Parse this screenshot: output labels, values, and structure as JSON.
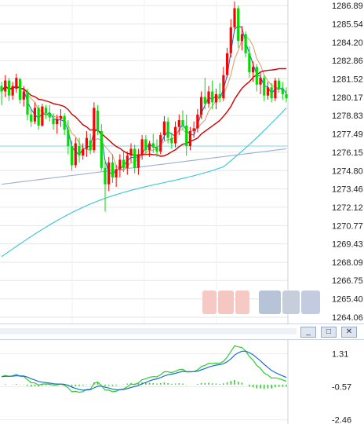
{
  "chart_data": [
    {
      "type": "candlestick",
      "title": "",
      "y_axis_side": "right",
      "ylim": [
        1263.6,
        1287.3
      ],
      "y_ticks": [
        "1286.89",
        "1285.54",
        "1284.20",
        "1282.86",
        "1281.52",
        "1280.17",
        "1278.83",
        "1277.49",
        "1276.15",
        "1274.80",
        "1273.46",
        "1272.12",
        "1270.77",
        "1269.43",
        "1268.09",
        "1266.75",
        "1265.40",
        "1264.06"
      ],
      "grid": true,
      "up_color": "#ff0000",
      "down_color": "#00dd00",
      "ma_colors": [
        "#1a6fd0",
        "#d9a276",
        "#cc0000",
        "#33c6d6",
        "#9aaed0"
      ],
      "horizontal_line": {
        "value": 1276.6,
        "color": "#7fd9e6"
      },
      "candles": [
        [
          1281.0,
          1281.3,
          1279.6,
          1280.6
        ],
        [
          1280.6,
          1281.8,
          1280.2,
          1281.4
        ],
        [
          1281.4,
          1281.6,
          1279.9,
          1280.3
        ],
        [
          1280.3,
          1281.3,
          1280.0,
          1281.0
        ],
        [
          1280.8,
          1281.9,
          1280.5,
          1281.6
        ],
        [
          1281.5,
          1281.6,
          1279.7,
          1280.0
        ],
        [
          1280.0,
          1281.0,
          1279.5,
          1280.6
        ],
        [
          1280.6,
          1280.8,
          1278.5,
          1278.9
        ],
        [
          1278.9,
          1279.4,
          1278.0,
          1278.4
        ],
        [
          1278.4,
          1279.8,
          1278.2,
          1279.4
        ],
        [
          1279.4,
          1279.6,
          1277.8,
          1278.1
        ],
        [
          1278.1,
          1279.7,
          1278.0,
          1279.5
        ],
        [
          1279.4,
          1279.6,
          1278.6,
          1279.0
        ],
        [
          1279.0,
          1279.6,
          1278.4,
          1278.7
        ],
        [
          1278.6,
          1279.0,
          1277.8,
          1278.2
        ],
        [
          1278.2,
          1278.9,
          1277.5,
          1278.6
        ],
        [
          1278.6,
          1279.3,
          1278.0,
          1278.8
        ],
        [
          1278.8,
          1279.0,
          1277.4,
          1277.8
        ],
        [
          1277.8,
          1278.5,
          1276.0,
          1276.6
        ],
        [
          1276.6,
          1277.0,
          1274.8,
          1275.2
        ],
        [
          1275.2,
          1277.2,
          1275.0,
          1276.8
        ],
        [
          1276.6,
          1277.2,
          1275.4,
          1275.9
        ],
        [
          1275.9,
          1276.8,
          1275.6,
          1276.4
        ],
        [
          1276.4,
          1277.7,
          1275.8,
          1277.2
        ],
        [
          1277.0,
          1277.5,
          1276.0,
          1276.3
        ],
        [
          1276.3,
          1279.8,
          1276.1,
          1279.4
        ],
        [
          1279.2,
          1279.6,
          1277.4,
          1277.7
        ],
        [
          1277.7,
          1278.2,
          1274.8,
          1275.0
        ],
        [
          1275.0,
          1275.6,
          1271.8,
          1273.8
        ],
        [
          1273.8,
          1275.8,
          1273.3,
          1275.4
        ],
        [
          1275.4,
          1276.0,
          1273.9,
          1274.3
        ],
        [
          1274.3,
          1275.2,
          1273.6,
          1274.9
        ],
        [
          1274.9,
          1276.0,
          1274.3,
          1275.6
        ],
        [
          1275.6,
          1276.2,
          1274.7,
          1275.0
        ],
        [
          1275.0,
          1276.2,
          1274.5,
          1275.9
        ],
        [
          1275.9,
          1276.8,
          1275.4,
          1276.4
        ],
        [
          1276.4,
          1276.7,
          1274.6,
          1275.0
        ],
        [
          1275.0,
          1276.4,
          1274.5,
          1276.0
        ],
        [
          1276.0,
          1277.4,
          1275.6,
          1277.1
        ],
        [
          1277.1,
          1277.4,
          1275.9,
          1276.3
        ],
        [
          1276.3,
          1277.0,
          1275.8,
          1276.8
        ],
        [
          1276.8,
          1277.5,
          1276.1,
          1276.5
        ],
        [
          1276.5,
          1277.1,
          1275.8,
          1276.2
        ],
        [
          1276.2,
          1277.6,
          1276.0,
          1277.4
        ],
        [
          1277.4,
          1278.8,
          1277.0,
          1278.4
        ],
        [
          1278.4,
          1278.7,
          1276.8,
          1277.2
        ],
        [
          1277.2,
          1277.6,
          1276.4,
          1276.8
        ],
        [
          1276.8,
          1278.4,
          1276.5,
          1278.0
        ],
        [
          1278.0,
          1278.9,
          1277.4,
          1278.5
        ],
        [
          1278.5,
          1279.2,
          1277.8,
          1278.1
        ],
        [
          1278.1,
          1278.9,
          1275.9,
          1276.6
        ],
        [
          1276.6,
          1278.0,
          1276.3,
          1277.7
        ],
        [
          1277.7,
          1278.4,
          1277.2,
          1277.9
        ],
        [
          1277.9,
          1279.3,
          1277.6,
          1278.9
        ],
        [
          1278.9,
          1280.6,
          1278.6,
          1280.2
        ],
        [
          1280.2,
          1281.6,
          1279.3,
          1279.7
        ],
        [
          1279.7,
          1281.0,
          1279.4,
          1280.6
        ],
        [
          1280.6,
          1281.4,
          1279.3,
          1279.8
        ],
        [
          1279.8,
          1280.8,
          1279.3,
          1280.4
        ],
        [
          1280.4,
          1281.2,
          1279.8,
          1280.1
        ],
        [
          1280.1,
          1282.4,
          1279.9,
          1281.8
        ],
        [
          1281.8,
          1283.8,
          1281.6,
          1283.4
        ],
        [
          1283.4,
          1285.9,
          1283.1,
          1285.3
        ],
        [
          1285.3,
          1287.2,
          1285.0,
          1286.7
        ],
        [
          1286.7,
          1286.9,
          1283.8,
          1284.3
        ],
        [
          1284.3,
          1285.4,
          1283.6,
          1284.8
        ],
        [
          1284.8,
          1285.0,
          1283.1,
          1283.4
        ],
        [
          1283.4,
          1283.9,
          1281.6,
          1282.0
        ],
        [
          1282.0,
          1282.8,
          1281.3,
          1282.4
        ],
        [
          1282.4,
          1282.6,
          1280.6,
          1281.1
        ],
        [
          1281.1,
          1282.0,
          1280.4,
          1281.6
        ],
        [
          1281.6,
          1281.8,
          1279.9,
          1280.3
        ],
        [
          1280.3,
          1281.3,
          1280.0,
          1280.9
        ],
        [
          1280.9,
          1281.2,
          1279.8,
          1280.1
        ],
        [
          1280.1,
          1281.6,
          1279.9,
          1281.4
        ],
        [
          1281.4,
          1281.6,
          1280.5,
          1280.8
        ],
        [
          1280.8,
          1281.3,
          1280.0,
          1280.4
        ],
        [
          1280.4,
          1280.9,
          1279.8,
          1280.1
        ]
      ]
    },
    {
      "type": "macd",
      "title": "",
      "y_axis_side": "right",
      "ylim": [
        -2.7,
        2.1
      ],
      "y_ticks": [
        "1.31",
        "-0.57",
        "-2.46"
      ],
      "line_colors": [
        "#2ecc2e",
        "#1a6fd0"
      ],
      "histogram_color": "#33cc33"
    }
  ],
  "window_controls": [
    {
      "name": "minimize-button",
      "label": "_"
    },
    {
      "name": "restore-button",
      "label": "□"
    },
    {
      "name": "close-button",
      "label": "✕"
    }
  ],
  "watermark_colors": [
    "#f7c9c4",
    "#f4c7c2",
    "#f7c9c4",
    "#b7c3d6",
    "#c6cedc",
    "#c2cbe0"
  ]
}
